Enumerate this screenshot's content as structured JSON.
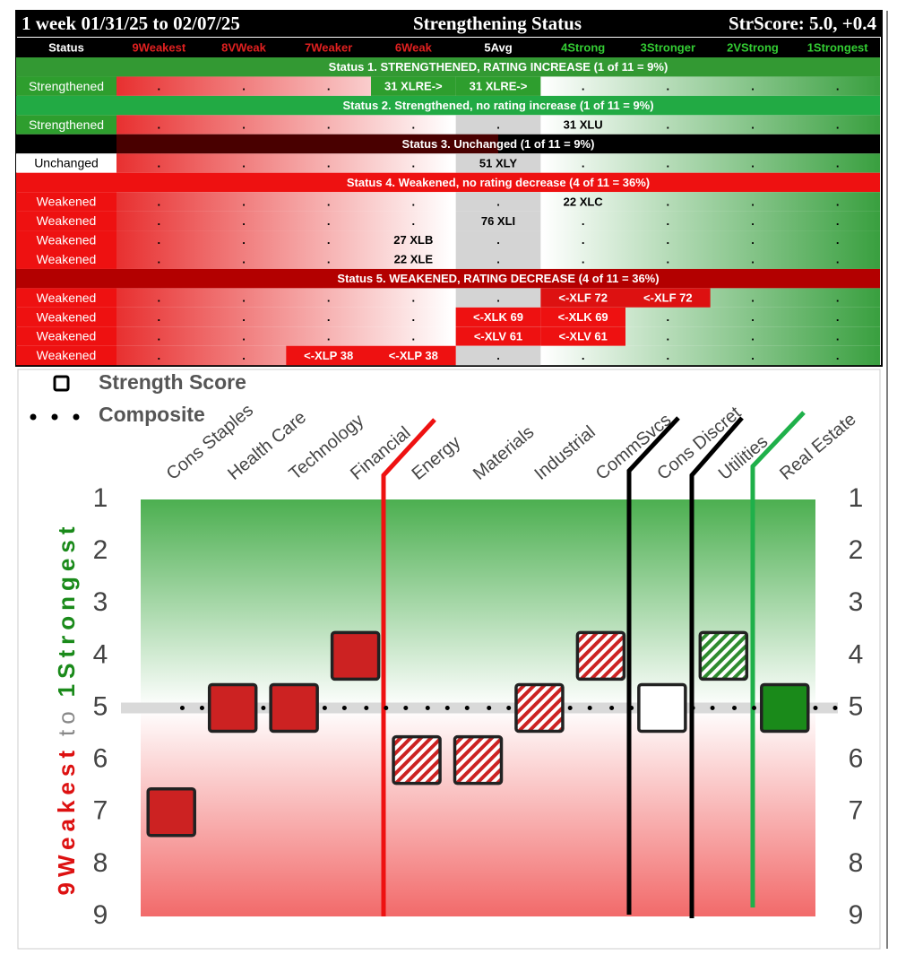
{
  "table": {
    "header": {
      "period": "1 week 01/31/25 to 02/07/25",
      "title": "Strengthening Status",
      "score": "StrScore: 5.0, +0.4"
    },
    "columns": [
      "Status",
      "9Weakest",
      "8VWeak",
      "7Weaker",
      "6Weak",
      "5Avg",
      "4Strong",
      "3Stronger",
      "2VStrong",
      "1Strongest"
    ],
    "column_colors": [
      "#ffffff",
      "#e02020",
      "#e02020",
      "#e02020",
      "#e02020",
      "#ffffff",
      "#33cc33",
      "#33cc33",
      "#33cc33",
      "#33cc33"
    ],
    "sections": [
      {
        "title": "Status 1. STRENGTHENED, RATING INCREASE (1 of 11 = 9%)",
        "color": "#339933",
        "status_fill": "#2e9e2e",
        "rows": [
          {
            "status": "Strengthened",
            "cells": [
              ".",
              ".",
              ".",
              {
                "text": "31 XLRE->",
                "fill": "#2e9e2e"
              },
              {
                "text": "31 XLRE->",
                "fill": "#2e9e2e"
              },
              ".",
              ".",
              ".",
              "."
            ]
          }
        ]
      },
      {
        "title": "Status 2. Strengthened, no rating increase (1 of 11 = 9%)",
        "color": "#22aa44",
        "status_fill": "#2e9e2e",
        "rows": [
          {
            "status": "Strengthened",
            "cells": [
              ".",
              ".",
              ".",
              ".",
              ".",
              "31 XLU",
              ".",
              ".",
              "."
            ]
          }
        ]
      },
      {
        "title": "Status 3. Unchanged (1 of 11 = 9%)",
        "color": "#000000",
        "status_fill": "#ffffff",
        "rows": [
          {
            "status": "Unchanged",
            "cells": [
              ".",
              ".",
              ".",
              ".",
              "51 XLY",
              ".",
              ".",
              ".",
              "."
            ]
          }
        ]
      },
      {
        "title": "Status 4. Weakened, no rating decrease (4 of 11 = 36%)",
        "color": "#ee1111",
        "status_fill": "#ee1111",
        "rows": [
          {
            "status": "Weakened",
            "cells": [
              ".",
              ".",
              ".",
              ".",
              ".",
              "22 XLC",
              ".",
              ".",
              "."
            ]
          },
          {
            "status": "Weakened",
            "cells": [
              ".",
              ".",
              ".",
              ".",
              "76 XLI",
              ".",
              ".",
              ".",
              "."
            ]
          },
          {
            "status": "Weakened",
            "cells": [
              ".",
              ".",
              ".",
              "27 XLB",
              ".",
              ".",
              ".",
              ".",
              "."
            ]
          },
          {
            "status": "Weakened",
            "cells": [
              ".",
              ".",
              ".",
              "22 XLE",
              ".",
              ".",
              ".",
              ".",
              "."
            ]
          }
        ]
      },
      {
        "title": "Status 5. WEAKENED, RATING DECREASE (4 of 11 = 36%)",
        "color": "#b30000",
        "status_fill": "#ee1111",
        "rows": [
          {
            "status": "Weakened",
            "cells": [
              ".",
              ".",
              ".",
              ".",
              ".",
              {
                "text": "<-XLF 72",
                "fill": "#dd1111"
              },
              {
                "text": "<-XLF 72",
                "fill": "#dd1111"
              },
              ".",
              "."
            ]
          },
          {
            "status": "Weakened",
            "cells": [
              ".",
              ".",
              ".",
              ".",
              {
                "text": "<-XLK 69",
                "fill": "#ee1111"
              },
              {
                "text": "<-XLK 69",
                "fill": "#ee1111"
              },
              ".",
              ".",
              "."
            ]
          },
          {
            "status": "Weakened",
            "cells": [
              ".",
              ".",
              ".",
              ".",
              {
                "text": "<-XLV 61",
                "fill": "#ee1111"
              },
              {
                "text": "<-XLV 61",
                "fill": "#ee1111"
              },
              ".",
              ".",
              "."
            ]
          },
          {
            "status": "Weakened",
            "cells": [
              ".",
              ".",
              {
                "text": "<-XLP 38",
                "fill": "#ee1111"
              },
              {
                "text": "<-XLP 38",
                "fill": "#ee1111"
              },
              ".",
              ".",
              ".",
              ".",
              "."
            ]
          }
        ]
      }
    ]
  },
  "chart_data": {
    "type": "scatter",
    "categories": [
      "Cons Staples",
      "Health Care",
      "Technology",
      "Financial",
      "Energy",
      "Materials",
      "Industrial",
      "CommSvcs",
      "Cons Discret",
      "Utilities",
      "Real Estate"
    ],
    "series": [
      {
        "name": "Strength Score",
        "color": "#222222",
        "values": [
          7,
          5,
          5,
          4,
          6,
          6,
          5,
          4,
          5,
          4,
          5
        ],
        "marker_fills": [
          "#cc2222",
          "#cc2222",
          "#cc2222",
          "#cc2222",
          "#cc2222",
          "#cc2222",
          "#cc2222",
          "#cc2222",
          "#ffffff",
          "#2e8b2e",
          "#1a8a1a"
        ],
        "marker_hatched": [
          false,
          false,
          false,
          false,
          true,
          true,
          true,
          true,
          false,
          true,
          false
        ]
      },
      {
        "name": "Composite",
        "color": "#000000",
        "values": [
          5,
          5,
          5,
          5,
          5,
          5,
          5,
          5,
          5,
          5,
          5
        ]
      }
    ],
    "y_label": [
      {
        "text": "9Weakest",
        "color": "#dd1111"
      },
      {
        "text": "to",
        "color": "#888888"
      },
      {
        "text": "1Strongest",
        "color": "#1a8a1a"
      }
    ],
    "ylim": [
      1,
      9
    ],
    "yticks": [
      1,
      2,
      3,
      4,
      5,
      6,
      7,
      8,
      9
    ],
    "y_inverted": true,
    "y2lim": [
      1,
      9
    ],
    "y2ticks": [
      1,
      2,
      3,
      4,
      5,
      6,
      7,
      8,
      9
    ]
  }
}
